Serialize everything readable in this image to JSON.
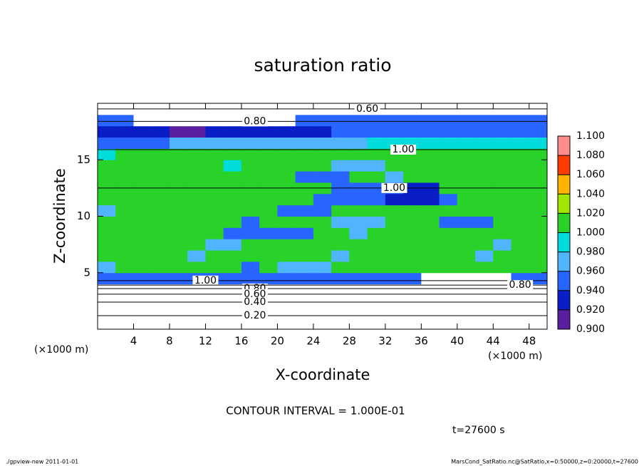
{
  "chart_data": {
    "type": "heatmap",
    "title": "saturation ratio",
    "x_label": "X-coordinate",
    "y_label": "Z-coordinate",
    "x_unit": "(×1000 m)",
    "y_unit": "(×1000 m)",
    "xlim": [
      0,
      50
    ],
    "ylim": [
      0,
      20
    ],
    "xticks": [
      4,
      8,
      12,
      16,
      20,
      24,
      28,
      32,
      36,
      40,
      44,
      48
    ],
    "yticks": [
      5,
      10,
      15
    ],
    "grid_values": [
      [
        0.1,
        0.1,
        0.1,
        0.1,
        0.1,
        0.1,
        0.1,
        0.1,
        0.1,
        0.1,
        0.1,
        0.1,
        0.1,
        0.1,
        0.1,
        0.1,
        0.1,
        0.1,
        0.1,
        0.1,
        0.1,
        0.1,
        0.1,
        0.1,
        0.1
      ],
      [
        0.3,
        0.3,
        0.3,
        0.3,
        0.3,
        0.3,
        0.3,
        0.3,
        0.3,
        0.3,
        0.3,
        0.3,
        0.3,
        0.3,
        0.3,
        0.3,
        0.3,
        0.3,
        0.3,
        0.3,
        0.3,
        0.3,
        0.3,
        0.3,
        0.3
      ],
      [
        0.5,
        0.5,
        0.5,
        0.5,
        0.5,
        0.5,
        0.5,
        0.5,
        0.5,
        0.5,
        0.5,
        0.5,
        0.5,
        0.5,
        0.5,
        0.5,
        0.5,
        0.5,
        0.5,
        0.5,
        0.5,
        0.5,
        0.5,
        0.5,
        0.5
      ],
      [
        0.8,
        0.8,
        0.8,
        0.8,
        0.8,
        0.8,
        0.8,
        0.8,
        0.8,
        0.8,
        0.8,
        0.8,
        0.8,
        0.8,
        0.8,
        0.8,
        0.8,
        0.8,
        0.7,
        0.7,
        0.7,
        0.7,
        0.7,
        0.8,
        0.8
      ],
      [
        0.94,
        0.94,
        0.95,
        0.95,
        0.95,
        0.95,
        0.95,
        0.95,
        0.95,
        0.95,
        0.95,
        0.95,
        0.95,
        0.95,
        0.95,
        0.95,
        0.95,
        0.95,
        0.85,
        0.85,
        0.85,
        0.85,
        0.85,
        0.95,
        0.95
      ],
      [
        0.96,
        1.01,
        1.01,
        1.01,
        1.01,
        1.01,
        1.01,
        1.01,
        0.95,
        1.01,
        0.97,
        0.97,
        0.97,
        1.01,
        1.01,
        1.01,
        1.01,
        1.01,
        1.01,
        1.01,
        1.01,
        1.01,
        1.01,
        1.01,
        1.01
      ],
      [
        1.01,
        1.01,
        1.01,
        1.01,
        1.01,
        0.97,
        1.01,
        1.01,
        1.01,
        1.01,
        1.01,
        1.01,
        1.01,
        0.97,
        1.01,
        1.01,
        1.01,
        1.01,
        1.01,
        1.01,
        1.01,
        0.96,
        1.01,
        1.01,
        1.01
      ],
      [
        1.01,
        1.01,
        1.01,
        1.01,
        1.01,
        1.01,
        0.96,
        0.96,
        1.01,
        1.01,
        1.01,
        1.01,
        1.01,
        1.01,
        1.01,
        1.01,
        1.01,
        1.01,
        1.01,
        1.01,
        1.01,
        1.01,
        0.97,
        1.01,
        1.01
      ],
      [
        1.01,
        1.01,
        1.01,
        1.01,
        1.01,
        1.01,
        1.01,
        0.94,
        0.94,
        0.94,
        0.94,
        0.94,
        1.01,
        1.01,
        0.97,
        1.01,
        1.01,
        1.01,
        1.01,
        1.01,
        1.01,
        1.01,
        1.01,
        1.01,
        1.01
      ],
      [
        1.01,
        1.01,
        1.01,
        1.01,
        1.01,
        1.01,
        1.01,
        1.01,
        0.95,
        1.01,
        1.01,
        1.01,
        1.01,
        0.96,
        0.96,
        0.96,
        1.01,
        1.01,
        1.01,
        0.95,
        0.95,
        0.95,
        1.01,
        1.01,
        1.01
      ],
      [
        0.97,
        1.01,
        1.01,
        1.01,
        1.01,
        1.01,
        1.01,
        1.01,
        1.01,
        1.01,
        0.95,
        0.95,
        0.95,
        1.01,
        1.01,
        1.01,
        1.01,
        1.01,
        1.01,
        1.01,
        1.01,
        1.01,
        1.01,
        1.01,
        1.01
      ],
      [
        1.01,
        1.01,
        1.01,
        1.01,
        1.01,
        1.01,
        1.01,
        1.01,
        1.01,
        1.01,
        1.01,
        1.01,
        0.94,
        0.94,
        0.94,
        0.94,
        0.92,
        0.92,
        0.92,
        0.95,
        1.01,
        1.01,
        1.01,
        1.01,
        1.01
      ],
      [
        1.01,
        1.01,
        1.01,
        1.01,
        1.01,
        1.01,
        1.01,
        1.01,
        1.01,
        1.01,
        1.01,
        1.01,
        1.01,
        0.95,
        0.95,
        0.95,
        0.95,
        0.93,
        0.93,
        1.01,
        1.01,
        1.01,
        1.01,
        1.01,
        1.01
      ],
      [
        1.01,
        1.01,
        1.01,
        1.01,
        1.01,
        1.01,
        1.01,
        1.01,
        1.01,
        1.01,
        1.01,
        0.95,
        0.95,
        0.95,
        1.01,
        1.01,
        0.97,
        1.01,
        1.01,
        1.01,
        1.01,
        1.01,
        1.01,
        1.01,
        1.01
      ],
      [
        1.01,
        1.01,
        1.01,
        1.01,
        1.01,
        1.01,
        1.01,
        0.98,
        1.01,
        1.01,
        1.01,
        1.01,
        1.01,
        0.97,
        0.97,
        0.97,
        1.01,
        1.01,
        1.01,
        1.01,
        1.01,
        1.01,
        1.01,
        1.01,
        1.01
      ],
      [
        0.99,
        1.01,
        1.01,
        1.01,
        1.01,
        1.01,
        1.01,
        1.01,
        1.01,
        1.01,
        1.01,
        1.01,
        1.01,
        1.01,
        1.01,
        1.01,
        1.01,
        1.01,
        1.01,
        1.01,
        1.01,
        1.01,
        1.01,
        1.01,
        1.01
      ],
      [
        0.95,
        0.95,
        0.95,
        0.95,
        0.97,
        0.97,
        0.97,
        0.97,
        0.97,
        0.97,
        0.97,
        0.97,
        0.97,
        0.97,
        0.97,
        0.98,
        0.98,
        0.98,
        0.98,
        0.98,
        0.98,
        0.98,
        0.98,
        0.98,
        0.98
      ],
      [
        0.93,
        0.93,
        0.93,
        0.93,
        0.91,
        0.91,
        0.92,
        0.92,
        0.92,
        0.92,
        0.92,
        0.92,
        0.92,
        0.94,
        0.94,
        0.94,
        0.94,
        0.94,
        0.94,
        0.94,
        0.94,
        0.94,
        0.94,
        0.94,
        0.94
      ],
      [
        0.94,
        0.94,
        0.8,
        0.8,
        0.8,
        0.8,
        0.8,
        0.8,
        0.8,
        0.8,
        0.8,
        0.95,
        0.95,
        0.95,
        0.95,
        0.95,
        0.95,
        0.95,
        0.95,
        0.95,
        0.95,
        0.95,
        0.95,
        0.95,
        0.95
      ],
      [
        0.7,
        0.7,
        0.7,
        0.7,
        0.7,
        0.7,
        0.7,
        0.7,
        0.7,
        0.7,
        0.7,
        0.7,
        0.7,
        0.7,
        0.7,
        0.7,
        0.7,
        0.7,
        0.7,
        0.7,
        0.7,
        0.7,
        0.7,
        0.7,
        0.7
      ]
    ],
    "colorbar": {
      "ticks": [
        {
          "value": 0.9,
          "label": "0.900"
        },
        {
          "value": 0.92,
          "label": "0.920"
        },
        {
          "value": 0.94,
          "label": "0.940"
        },
        {
          "value": 0.96,
          "label": "0.960"
        },
        {
          "value": 0.98,
          "label": "0.980"
        },
        {
          "value": 1.0,
          "label": "1.000"
        },
        {
          "value": 1.02,
          "label": "1.020"
        },
        {
          "value": 1.04,
          "label": "1.040"
        },
        {
          "value": 1.06,
          "label": "1.060"
        },
        {
          "value": 1.08,
          "label": "1.080"
        },
        {
          "value": 1.1,
          "label": "1.100"
        }
      ],
      "colors": [
        "#5a1ea0",
        "#0a1ec8",
        "#2864ff",
        "#50b4ff",
        "#00dcdc",
        "#28d228",
        "#a0e600",
        "#ffb400",
        "#ff3c00",
        "#ff8c8c"
      ]
    },
    "contours": [
      {
        "value": 0.6,
        "label": "0.60",
        "x": 30,
        "z": 19.5
      },
      {
        "value": 0.8,
        "label": "0.80",
        "x": 17.5,
        "z": 18.4
      },
      {
        "value": 1.0,
        "label": "1.00",
        "x": 34,
        "z": 15.9
      },
      {
        "value": 1.0,
        "label": "1.00",
        "x": 33,
        "z": 12.5
      },
      {
        "value": 1.0,
        "label": "1.00",
        "x": 12,
        "z": 4.3
      },
      {
        "value": 0.8,
        "label": "0.80",
        "x": 17.5,
        "z": 3.6
      },
      {
        "value": 0.6,
        "label": "0.60",
        "x": 17.5,
        "z": 3.1
      },
      {
        "value": 0.4,
        "label": "0.40",
        "x": 17.5,
        "z": 2.4
      },
      {
        "value": 0.2,
        "label": "0.20",
        "x": 17.5,
        "z": 1.2
      },
      {
        "value": 0.8,
        "label": "0.80",
        "x": 47,
        "z": 3.9
      }
    ],
    "contour_interval": "CONTOUR INTERVAL = 1.000E-01",
    "time_label": "t=27600 s",
    "footer_left": "./gpview-new  2011-01-01",
    "footer_right": "MarsCond_SatRatio.nc@SatRatio,x=0:50000,z=0:20000,t=27600"
  }
}
